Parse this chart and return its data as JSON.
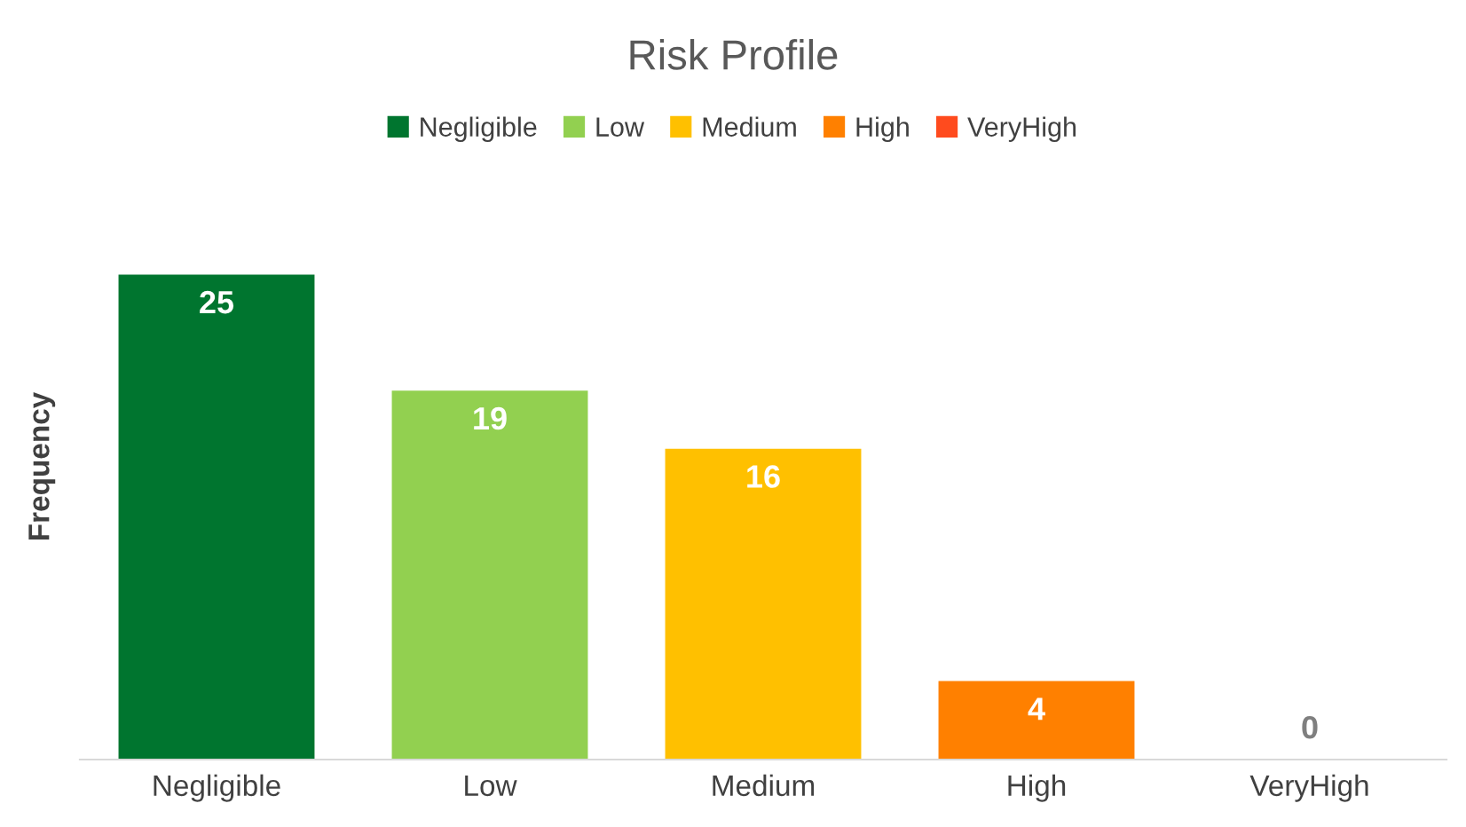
{
  "chart_data": {
    "type": "bar",
    "title": "Risk Profile",
    "ylabel": "Frequency",
    "categories": [
      "Negligible",
      "Low",
      "Medium",
      "High",
      "VeryHigh"
    ],
    "series": [
      {
        "name": "Negligible",
        "color": "#00752f",
        "values": [
          25,
          null,
          null,
          null,
          null
        ]
      },
      {
        "name": "Low",
        "color": "#92d050",
        "values": [
          null,
          19,
          null,
          null,
          null
        ]
      },
      {
        "name": "Medium",
        "color": "#ffc000",
        "values": [
          null,
          null,
          16,
          null,
          null
        ]
      },
      {
        "name": "High",
        "color": "#ff8000",
        "values": [
          null,
          null,
          null,
          4,
          null
        ]
      },
      {
        "name": "VeryHigh",
        "color": "#ff4b1e",
        "values": [
          null,
          null,
          null,
          null,
          0
        ]
      }
    ],
    "data_labels": true,
    "legend": "top",
    "grid": false
  }
}
